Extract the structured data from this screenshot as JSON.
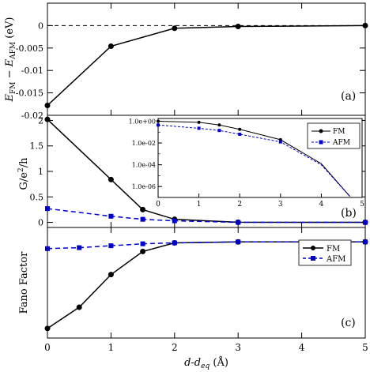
{
  "chart_data": [
    {
      "id": "a",
      "type": "line",
      "panel_label": "(a)",
      "ylabel_main": "E",
      "ylabel_sub1": "FM",
      "ylabel_mid": " − E",
      "ylabel_sub2": "AFM",
      "ylabel_unit": " (eV)",
      "ylim": [
        -0.02,
        0.005
      ],
      "yticks": [
        0,
        -0.005,
        -0.01,
        -0.015,
        -0.02
      ],
      "ytick_labels": [
        "0",
        "-0.005",
        "-0.01",
        "-0.015",
        "-0.02"
      ],
      "reference_line": 0,
      "series": [
        {
          "x": [
            0,
            1,
            2,
            3,
            5
          ],
          "y": [
            -0.0178,
            -0.0046,
            -0.0006,
            -0.0002,
            0.0
          ]
        }
      ]
    },
    {
      "id": "b",
      "type": "line",
      "panel_label": "(b)",
      "ylabel_main": "G/e",
      "ylabel_sup": "2",
      "ylabel_tail": "/h",
      "ylim": [
        -0.1,
        2.1
      ],
      "yticks": [
        0,
        0.5,
        1,
        1.5,
        2
      ],
      "ytick_labels": [
        "0",
        "0.5",
        "1",
        "1.5",
        "2"
      ],
      "legend_position": "top-right",
      "series": [
        {
          "name": "FM",
          "color": "#000000",
          "x": [
            0,
            1,
            1.5,
            2,
            3,
            5
          ],
          "y": [
            2.02,
            0.84,
            0.25,
            0.06,
            0.003,
            0.0
          ]
        },
        {
          "name": "AFM",
          "color": "#0000cc",
          "x": [
            0,
            1,
            1.5,
            2,
            3,
            5
          ],
          "y": [
            0.27,
            0.12,
            0.06,
            0.03,
            0.0,
            0.0
          ]
        }
      ],
      "inset": {
        "type": "line",
        "yscale": "log",
        "xlim": [
          0,
          5
        ],
        "xticks": [
          0,
          1,
          2,
          3,
          4,
          5
        ],
        "xtick_labels": [
          "0",
          "1",
          "2",
          "3",
          "4",
          "5"
        ],
        "ylim_exp": [
          -7,
          0.25
        ],
        "yticks_exp": [
          0,
          -2,
          -4,
          -6
        ],
        "ytick_labels": [
          "1.0e+00",
          "1.0e-02",
          "1.0e-04",
          "1.0e-06"
        ],
        "legend_position": "top-right",
        "series": [
          {
            "name": "FM",
            "color": "#000000",
            "x": [
              0,
              1,
              1.5,
              2,
              3,
              4,
              4.7
            ],
            "log10_y": [
              0.0,
              -0.1,
              -0.35,
              -0.75,
              -1.7,
              -3.9,
              -6.9
            ]
          },
          {
            "name": "AFM",
            "color": "#0000cc",
            "x": [
              0,
              1,
              1.5,
              2,
              3,
              4,
              4.7
            ],
            "log10_y": [
              -0.35,
              -0.65,
              -0.85,
              -1.2,
              -1.9,
              -4.0,
              -6.9
            ]
          }
        ]
      }
    },
    {
      "id": "c",
      "type": "line",
      "panel_label": "(c)",
      "ylabel": "Fano Factor",
      "ylim": [
        0,
        1.15
      ],
      "xlabel_main": "d-d",
      "xlabel_sub": "eq",
      "xlabel_unit": " (Å)",
      "xlim": [
        0,
        5
      ],
      "xticks": [
        0,
        1,
        2,
        3,
        4,
        5
      ],
      "xtick_labels": [
        "0",
        "1",
        "2",
        "3",
        "4",
        "5"
      ],
      "legend_position": "top-right",
      "series": [
        {
          "name": "FM",
          "color": "#000000",
          "x": [
            0,
            0.5,
            1,
            1.5,
            2,
            3,
            5
          ],
          "y": [
            0.1,
            0.32,
            0.66,
            0.9,
            0.99,
            1.0,
            1.0
          ]
        },
        {
          "name": "AFM",
          "color": "#0000cc",
          "x": [
            0,
            0.5,
            1,
            1.5,
            2,
            3,
            5
          ],
          "y": [
            0.93,
            0.94,
            0.96,
            0.98,
            0.99,
            1.0,
            1.0
          ]
        }
      ]
    }
  ]
}
